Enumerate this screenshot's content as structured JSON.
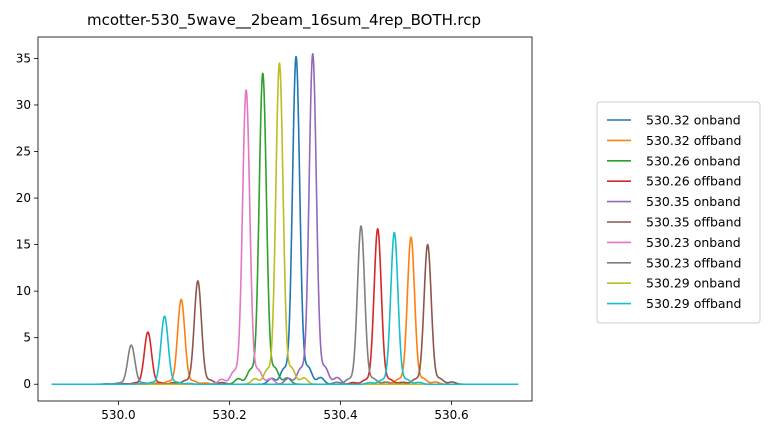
{
  "chart_data": {
    "type": "line",
    "title": "mcotter-530_5wave__2beam_16sum_4rep_BOTH.rcp",
    "xlabel": "",
    "ylabel": "",
    "xlim": [
      529.855,
      530.745
    ],
    "ylim": [
      -1.8,
      37.3
    ],
    "x_ticks": [
      530.0,
      530.2,
      530.4,
      530.6
    ],
    "x_tick_labels": [
      "530.0",
      "530.2",
      "530.4",
      "530.6"
    ],
    "y_ticks": [
      0,
      5,
      10,
      15,
      20,
      25,
      30,
      35
    ],
    "y_tick_labels": [
      "0",
      "5",
      "10",
      "15",
      "20",
      "25",
      "30",
      "35"
    ],
    "x_range": [
      529.88,
      530.72
    ],
    "grid": false,
    "legend_position": "right",
    "series": [
      {
        "name": "530.32 onband",
        "color": "#1f77b4",
        "peaks": [
          {
            "x": 530.32,
            "y": 35.2
          }
        ],
        "side_lobes": 1.8
      },
      {
        "name": "530.32 offband",
        "color": "#ff7f0e",
        "peaks": [
          {
            "x": 530.113,
            "y": 9.1
          },
          {
            "x": 530.527,
            "y": 15.8
          }
        ],
        "side_lobes": 0.6
      },
      {
        "name": "530.26 onband",
        "color": "#2ca02c",
        "peaks": [
          {
            "x": 530.26,
            "y": 33.4
          }
        ],
        "side_lobes": 1.7
      },
      {
        "name": "530.26 offband",
        "color": "#d62728",
        "peaks": [
          {
            "x": 530.053,
            "y": 5.6
          },
          {
            "x": 530.467,
            "y": 16.7
          }
        ],
        "side_lobes": 0.5
      },
      {
        "name": "530.35 onband",
        "color": "#9467bd",
        "peaks": [
          {
            "x": 530.35,
            "y": 35.5
          }
        ],
        "side_lobes": 1.8
      },
      {
        "name": "530.35 offband",
        "color": "#8c564b",
        "peaks": [
          {
            "x": 530.143,
            "y": 11.1
          },
          {
            "x": 530.557,
            "y": 15.0
          }
        ],
        "side_lobes": 0.6
      },
      {
        "name": "530.23 onband",
        "color": "#e377c2",
        "peaks": [
          {
            "x": 530.23,
            "y": 31.6
          }
        ],
        "side_lobes": 1.5
      },
      {
        "name": "530.23 offband",
        "color": "#7f7f7f",
        "peaks": [
          {
            "x": 530.023,
            "y": 4.2
          },
          {
            "x": 530.437,
            "y": 17.0
          }
        ],
        "side_lobes": 0.6
      },
      {
        "name": "530.29 onband",
        "color": "#bcbd22",
        "peaks": [
          {
            "x": 530.29,
            "y": 34.5
          }
        ],
        "side_lobes": 1.7
      },
      {
        "name": "530.29 offband",
        "color": "#17becf",
        "peaks": [
          {
            "x": 530.083,
            "y": 7.3
          },
          {
            "x": 530.497,
            "y": 16.3
          }
        ],
        "side_lobes": 0.5
      }
    ]
  }
}
